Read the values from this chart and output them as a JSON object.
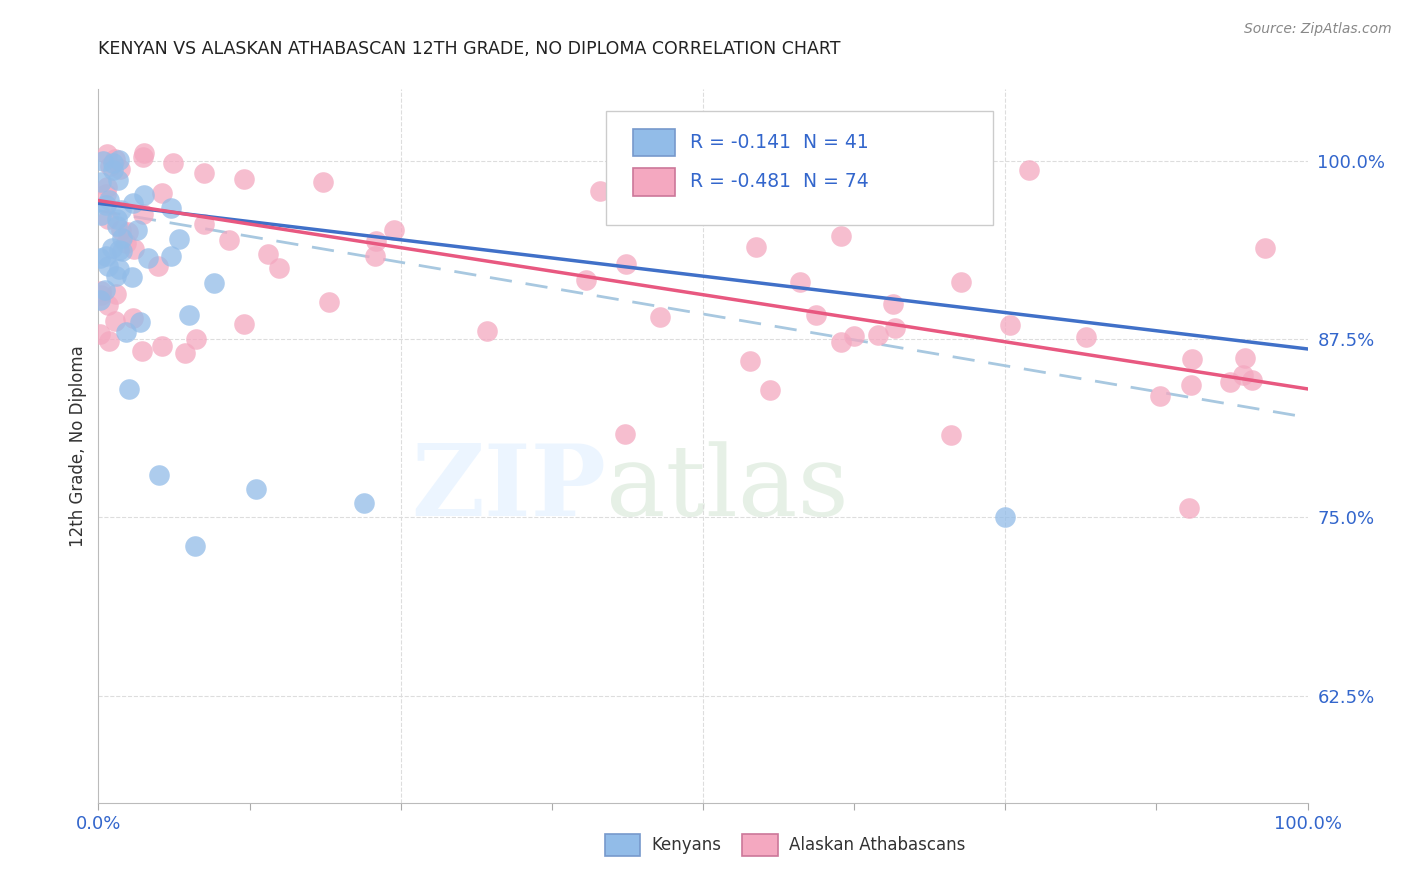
{
  "title": "KENYAN VS ALASKAN ATHABASCAN 12TH GRADE, NO DIPLOMA CORRELATION CHART",
  "source": "Source: ZipAtlas.com",
  "ylabel": "12th Grade, No Diploma",
  "ytick_labels": [
    "100.0%",
    "87.5%",
    "75.0%",
    "62.5%"
  ],
  "ytick_values": [
    1.0,
    0.875,
    0.75,
    0.625
  ],
  "xmin": 0.0,
  "xmax": 1.0,
  "ymin": 0.55,
  "ymax": 1.05,
  "kenyan_R": -0.141,
  "kenyan_N": 41,
  "athabascan_R": -0.481,
  "athabascan_N": 74,
  "kenyan_color": "#92bce8",
  "athabascan_color": "#f4a8c0",
  "kenyan_line_color": "#4070c8",
  "athabascan_line_color": "#e85880",
  "dashed_line_color": "#a8c8e0",
  "kenyan_line_x0": 0.0,
  "kenyan_line_y0": 0.97,
  "kenyan_line_x1": 1.0,
  "kenyan_line_y1": 0.868,
  "athabascan_line_x0": 0.0,
  "athabascan_line_y0": 0.972,
  "athabascan_line_x1": 1.0,
  "athabascan_line_y1": 0.84,
  "dashed_line_x0": 0.0,
  "dashed_line_y0": 0.965,
  "dashed_line_x1": 1.0,
  "dashed_line_y1": 0.82
}
